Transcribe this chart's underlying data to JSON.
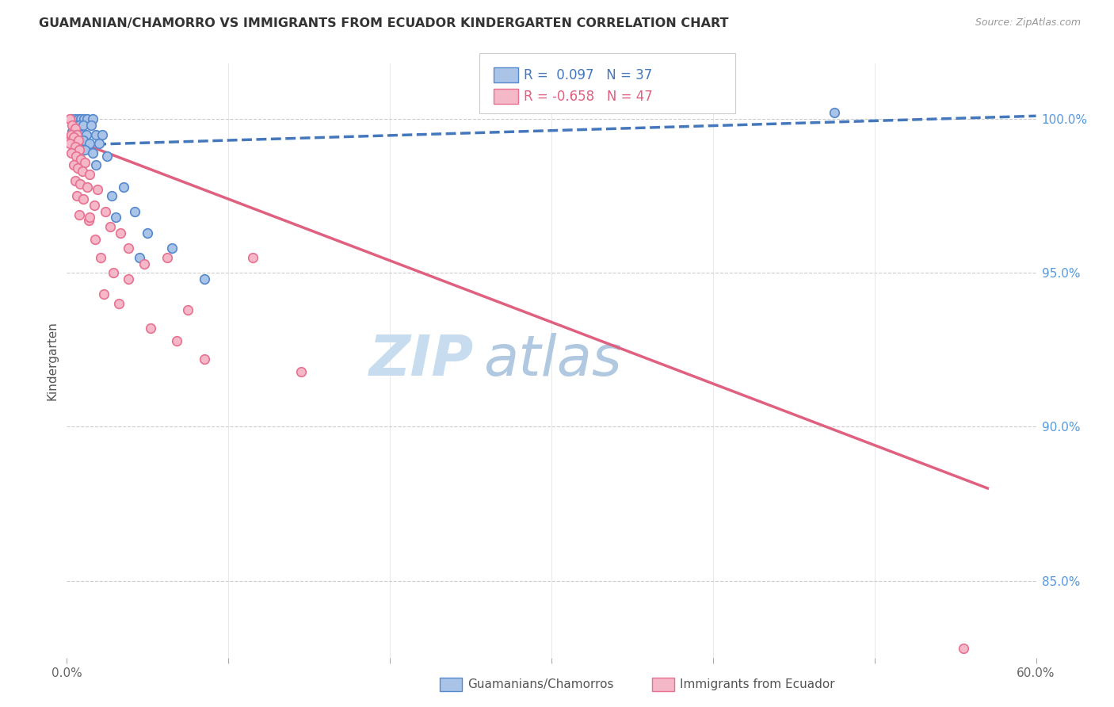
{
  "title": "GUAMANIAN/CHAMORRO VS IMMIGRANTS FROM ECUADOR KINDERGARTEN CORRELATION CHART",
  "source": "Source: ZipAtlas.com",
  "ylabel": "Kindergarten",
  "ytick_labels": [
    "85.0%",
    "90.0%",
    "95.0%",
    "100.0%"
  ],
  "ytick_values": [
    85.0,
    90.0,
    95.0,
    100.0
  ],
  "xmin": 0.0,
  "xmax": 60.0,
  "ymin": 82.5,
  "ymax": 101.8,
  "r_blue": 0.097,
  "n_blue": 37,
  "r_pink": -0.658,
  "n_pink": 47,
  "legend_label_blue": "Guamanians/Chamorros",
  "legend_label_pink": "Immigrants from Ecuador",
  "watermark_zip": "ZIP",
  "watermark_atlas": "atlas",
  "blue_color": "#AAC4E8",
  "pink_color": "#F4B8C8",
  "blue_edge_color": "#5588CC",
  "pink_edge_color": "#E87090",
  "blue_line_color": "#4477BB",
  "pink_line_color": "#E06080",
  "blue_scatter": [
    [
      0.3,
      100.0
    ],
    [
      0.5,
      100.0
    ],
    [
      0.7,
      100.0
    ],
    [
      0.85,
      100.0
    ],
    [
      1.05,
      100.0
    ],
    [
      1.25,
      100.0
    ],
    [
      1.6,
      100.0
    ],
    [
      0.4,
      99.8
    ],
    [
      0.6,
      99.8
    ],
    [
      0.75,
      99.8
    ],
    [
      1.0,
      99.8
    ],
    [
      1.5,
      99.8
    ],
    [
      0.35,
      99.6
    ],
    [
      0.55,
      99.6
    ],
    [
      0.9,
      99.5
    ],
    [
      1.2,
      99.5
    ],
    [
      1.8,
      99.5
    ],
    [
      2.2,
      99.5
    ],
    [
      0.45,
      99.3
    ],
    [
      0.7,
      99.3
    ],
    [
      1.0,
      99.3
    ],
    [
      1.4,
      99.2
    ],
    [
      2.0,
      99.2
    ],
    [
      0.5,
      99.0
    ],
    [
      1.1,
      99.0
    ],
    [
      1.6,
      98.9
    ],
    [
      2.5,
      98.8
    ],
    [
      1.8,
      98.5
    ],
    [
      3.5,
      97.8
    ],
    [
      4.2,
      97.0
    ],
    [
      5.0,
      96.3
    ],
    [
      6.5,
      95.8
    ],
    [
      8.5,
      94.8
    ],
    [
      4.5,
      95.5
    ],
    [
      3.0,
      96.8
    ],
    [
      2.8,
      97.5
    ],
    [
      47.5,
      100.2
    ]
  ],
  "pink_scatter": [
    [
      0.2,
      100.0
    ],
    [
      0.35,
      99.8
    ],
    [
      0.5,
      99.7
    ],
    [
      0.3,
      99.5
    ],
    [
      0.6,
      99.5
    ],
    [
      0.4,
      99.4
    ],
    [
      0.7,
      99.3
    ],
    [
      0.2,
      99.2
    ],
    [
      0.5,
      99.1
    ],
    [
      0.75,
      99.0
    ],
    [
      0.3,
      98.9
    ],
    [
      0.55,
      98.8
    ],
    [
      0.85,
      98.7
    ],
    [
      1.1,
      98.6
    ],
    [
      0.4,
      98.5
    ],
    [
      0.65,
      98.4
    ],
    [
      0.95,
      98.3
    ],
    [
      1.4,
      98.2
    ],
    [
      0.5,
      98.0
    ],
    [
      0.8,
      97.9
    ],
    [
      1.25,
      97.8
    ],
    [
      1.9,
      97.7
    ],
    [
      0.6,
      97.5
    ],
    [
      1.0,
      97.4
    ],
    [
      1.7,
      97.2
    ],
    [
      2.4,
      97.0
    ],
    [
      0.75,
      96.9
    ],
    [
      1.35,
      96.7
    ],
    [
      2.7,
      96.5
    ],
    [
      3.3,
      96.3
    ],
    [
      1.75,
      96.1
    ],
    [
      3.8,
      95.8
    ],
    [
      2.1,
      95.5
    ],
    [
      4.8,
      95.3
    ],
    [
      2.9,
      95.0
    ],
    [
      6.2,
      95.5
    ],
    [
      3.8,
      94.8
    ],
    [
      7.5,
      93.8
    ],
    [
      11.5,
      95.5
    ],
    [
      2.3,
      94.3
    ],
    [
      3.2,
      94.0
    ],
    [
      5.2,
      93.2
    ],
    [
      6.8,
      92.8
    ],
    [
      8.5,
      92.2
    ],
    [
      14.5,
      91.8
    ],
    [
      55.5,
      82.8
    ],
    [
      1.4,
      96.8
    ]
  ],
  "blue_trendline_x": [
    0.0,
    60.0
  ],
  "blue_trendline_y": [
    99.15,
    100.1
  ],
  "pink_trendline_x": [
    0.0,
    57.0
  ],
  "pink_trendline_y": [
    99.4,
    88.0
  ]
}
